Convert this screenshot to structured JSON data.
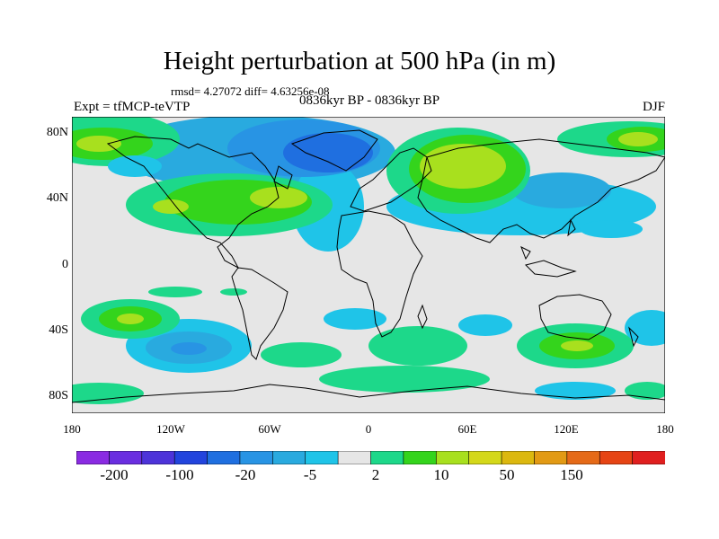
{
  "title": "Height perturbation at 500 hPa (in m)",
  "stats": "rmsd= 4.27072 diff= 4.63256e-08",
  "experiment": "Expt = tfMCP-teVTP",
  "period": "0836kyr BP - 0836kyr BP",
  "season": "DJF",
  "lat_labels": [
    "80N",
    "40N",
    "0",
    "40S",
    "80S"
  ],
  "lon_labels": [
    "180",
    "120W",
    "60W",
    "0",
    "60E",
    "120E",
    "180"
  ],
  "colorbar": {
    "colors": [
      "#8a2be2",
      "#6a2ee0",
      "#4d33d9",
      "#2244dd",
      "#1f6fe0",
      "#2894e4",
      "#29aadf",
      "#1fc4e8",
      "#e6e6e6",
      "#1dd88a",
      "#34d41c",
      "#a8e01e",
      "#d4d81a",
      "#dcb80f",
      "#e29a14",
      "#e56a18",
      "#e64414",
      "#e01f1f"
    ],
    "labels": [
      "-200",
      "-100",
      "-20",
      "-5",
      "2",
      "10",
      "50",
      "150"
    ]
  },
  "palette": {
    "background": "#e6e6e6",
    "coast": "#000000"
  }
}
